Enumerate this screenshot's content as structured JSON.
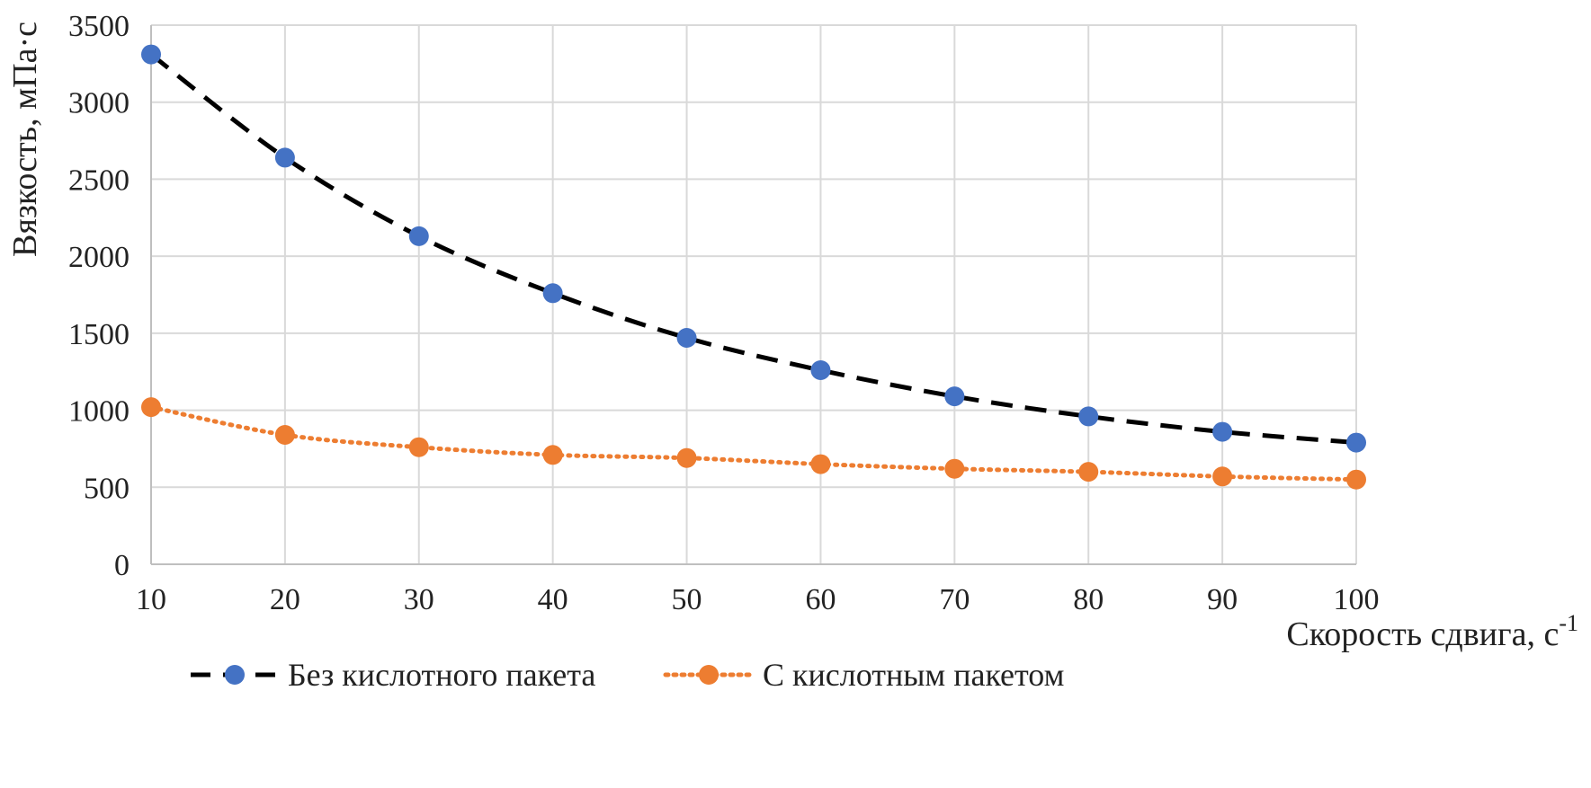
{
  "chart_data": {
    "type": "line",
    "title": "",
    "xlabel": "Скорость сдвига, с",
    "xlabel_sup": "-1",
    "ylabel": "Вязкость, мПа·с",
    "x": [
      10,
      20,
      30,
      40,
      50,
      60,
      70,
      80,
      90,
      100
    ],
    "x_ticks": [
      "10",
      "20",
      "30",
      "40",
      "50",
      "60",
      "70",
      "80",
      "90",
      "100"
    ],
    "y_ticks": [
      "0",
      "500",
      "1000",
      "1500",
      "2000",
      "2500",
      "3000",
      "3500"
    ],
    "xlim": [
      10,
      100
    ],
    "ylim": [
      0,
      3500
    ],
    "grid": true,
    "legend_position": "bottom",
    "series": [
      {
        "name": "Без кислотного пакета",
        "marker_color": "#4472c4",
        "line_color": "#000000",
        "line_style": "dashed",
        "values": [
          3310,
          2640,
          2130,
          1760,
          1470,
          1260,
          1090,
          960,
          860,
          790
        ]
      },
      {
        "name": "С кислотным пакетом",
        "marker_color": "#ed7d31",
        "line_color": "#ed7d31",
        "line_style": "dotted",
        "values": [
          1020,
          840,
          760,
          710,
          690,
          650,
          620,
          600,
          570,
          550
        ]
      }
    ]
  }
}
